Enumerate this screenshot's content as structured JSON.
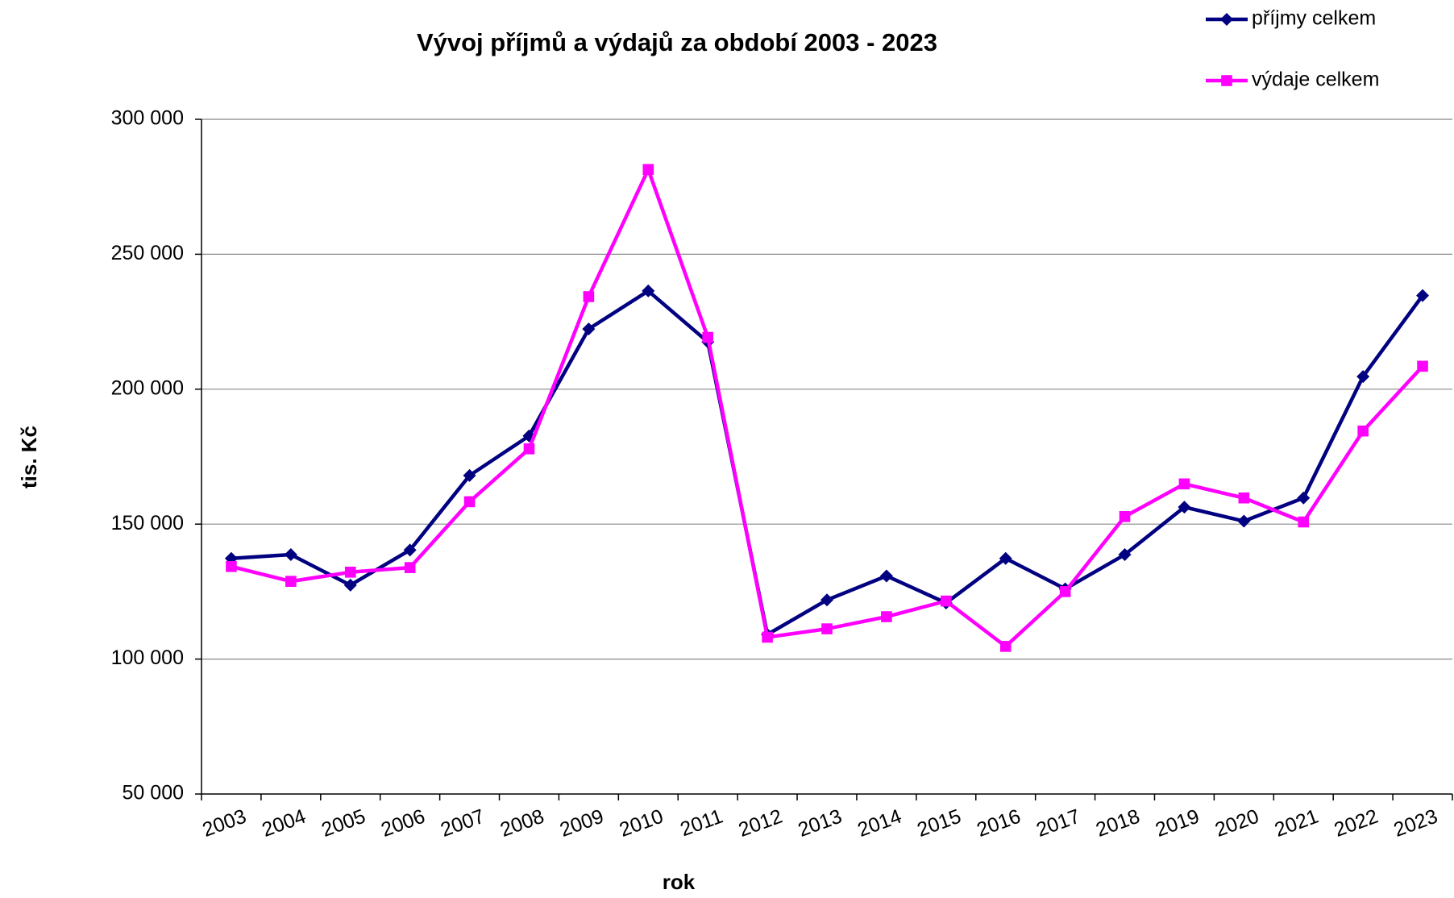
{
  "chart_data": {
    "type": "line",
    "title": "Vývoj příjmů a výdajů za období 2003 - 2023",
    "x_label": "rok",
    "y_label": "tis. Kč",
    "categories": [
      "2003",
      "2004",
      "2005",
      "2006",
      "2007",
      "2008",
      "2009",
      "2010",
      "2011",
      "2012",
      "2013",
      "2014",
      "2015",
      "2016",
      "2017",
      "2018",
      "2019",
      "2020",
      "2021",
      "2022",
      "2023"
    ],
    "series": [
      {
        "name": "příjmy celkem",
        "color": "#000080",
        "marker": "diamond",
        "values": [
          137300,
          138700,
          127400,
          140400,
          168000,
          182700,
          222300,
          236400,
          217500,
          109100,
          121900,
          130800,
          120800,
          137300,
          126000,
          138700,
          156300,
          151100,
          159700,
          204700,
          234700
        ]
      },
      {
        "name": "výdaje celkem",
        "color": "#ff00ff",
        "marker": "square",
        "values": [
          134300,
          128800,
          132200,
          133900,
          158300,
          177900,
          234300,
          281400,
          219200,
          108100,
          111200,
          115700,
          121500,
          104700,
          125000,
          152800,
          164900,
          159700,
          150800,
          184500,
          208500
        ]
      }
    ],
    "ylim": [
      50000,
      300000
    ],
    "yticks": [
      {
        "value": 50000,
        "label": "50 000"
      },
      {
        "value": 100000,
        "label": "100 000"
      },
      {
        "value": 150000,
        "label": "150 000"
      },
      {
        "value": 200000,
        "label": "200 000"
      },
      {
        "value": 250000,
        "label": "250 000"
      },
      {
        "value": 300000,
        "label": "300 000"
      }
    ],
    "grid": true,
    "legend": "top-right"
  }
}
